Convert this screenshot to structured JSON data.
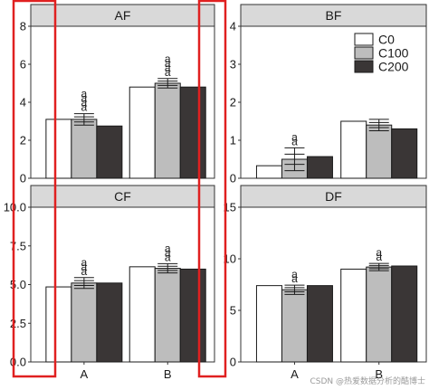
{
  "chart_data": {
    "type": "bar",
    "layout": "facet 2x2",
    "categories": [
      "A",
      "B"
    ],
    "legend": {
      "position": "top-right of panel BF",
      "entries": [
        {
          "name": "C0",
          "color": "#ffffff"
        },
        {
          "name": "C100",
          "color": "#bdbdbd"
        },
        {
          "name": "C200",
          "color": "#3a3636"
        }
      ]
    },
    "highlight_color": "#e02020",
    "grid": false,
    "panels": [
      {
        "title": "AF",
        "ylim": [
          0,
          8
        ],
        "yticks": [
          "0",
          "2",
          "4",
          "6",
          "8"
        ],
        "show_xticks": false,
        "series": [
          {
            "name": "C0",
            "values": [
              3.1,
              4.8
            ]
          },
          {
            "name": "C100",
            "values": [
              3.1,
              5.0
            ]
          },
          {
            "name": "C200",
            "values": [
              2.75,
              4.8
            ]
          }
        ],
        "error": [
          0.3,
          0.25
        ],
        "letters": [
          [
            "a",
            "a",
            "a",
            "a"
          ],
          [
            "a",
            "a",
            "a",
            "a"
          ]
        ]
      },
      {
        "title": "BF",
        "ylim": [
          0,
          4
        ],
        "yticks": [
          "0",
          "1",
          "2",
          "3",
          "4"
        ],
        "show_xticks": false,
        "series": [
          {
            "name": "C0",
            "values": [
              0.33,
              1.5
            ]
          },
          {
            "name": "C100",
            "values": [
              0.5,
              1.4
            ]
          },
          {
            "name": "C200",
            "values": [
              0.57,
              1.3
            ]
          }
        ],
        "error": [
          0.3,
          0.15
        ],
        "letters": [
          [
            "a",
            "a"
          ],
          []
        ]
      },
      {
        "title": "CF",
        "ylim": [
          0,
          10
        ],
        "yticks": [
          "0.0",
          "2.5",
          "5.0",
          "7.5",
          "10.0"
        ],
        "show_xticks": true,
        "series": [
          {
            "name": "C0",
            "values": [
              4.85,
              6.15
            ]
          },
          {
            "name": "C100",
            "values": [
              5.1,
              6.05
            ]
          },
          {
            "name": "C200",
            "values": [
              5.1,
              6.0
            ]
          }
        ],
        "error": [
          0.35,
          0.3
        ],
        "letters": [
          [
            "a",
            "a",
            "a"
          ],
          [
            "a",
            "a",
            "a"
          ]
        ]
      },
      {
        "title": "DF",
        "ylim": [
          0,
          15
        ],
        "yticks": [
          "0",
          "5",
          "10",
          "15"
        ],
        "show_xticks": true,
        "series": [
          {
            "name": "C0",
            "values": [
              7.4,
              9.0
            ]
          },
          {
            "name": "C100",
            "values": [
              7.0,
              9.2
            ]
          },
          {
            "name": "C200",
            "values": [
              7.4,
              9.3
            ]
          }
        ],
        "error": [
          0.45,
          0.35
        ],
        "letters": [
          [
            "a",
            "a"
          ],
          [
            "a",
            "a"
          ]
        ]
      }
    ]
  },
  "watermark": "CSDN @热爱数据分析的酷博士"
}
